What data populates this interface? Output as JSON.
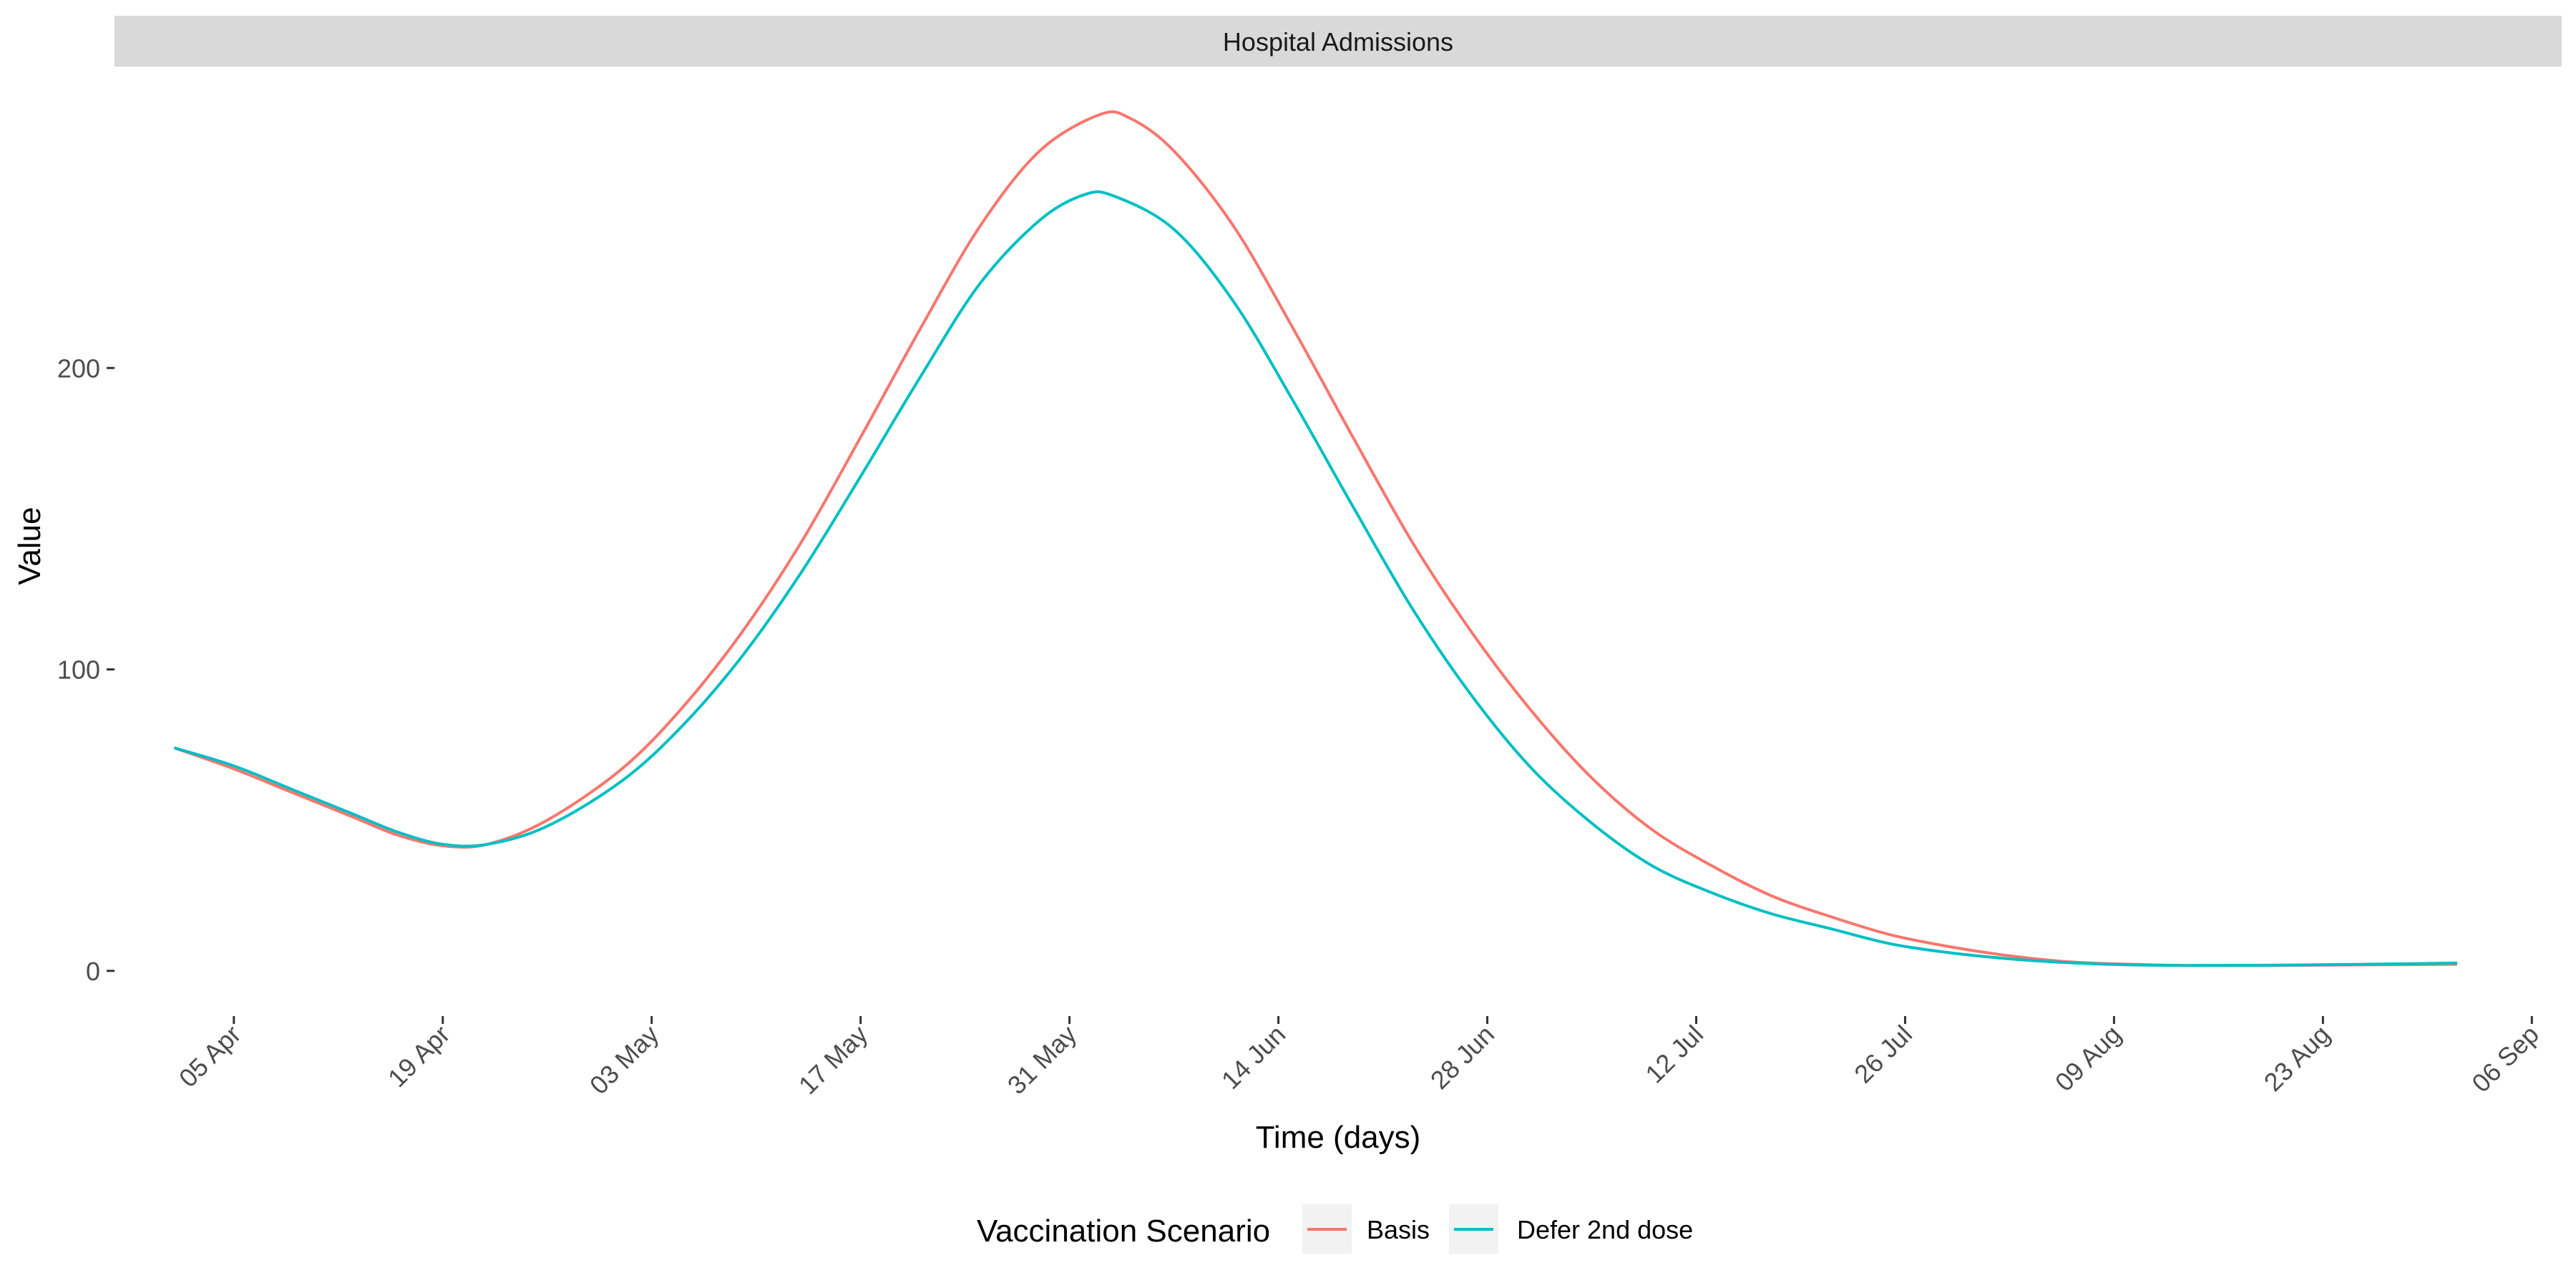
{
  "chart_data": {
    "type": "line",
    "panel_title": "Hospital Admissions",
    "xlabel": "Time (days)",
    "ylabel": "Value",
    "x_type": "date",
    "xlim": [
      "2021-03-28",
      "2021-09-08"
    ],
    "ylim": [
      -15,
      300
    ],
    "x_ticks": [
      {
        "date": "2021-04-05",
        "label": "05 Apr"
      },
      {
        "date": "2021-04-19",
        "label": "19 Apr"
      },
      {
        "date": "2021-05-03",
        "label": "03 May"
      },
      {
        "date": "2021-05-17",
        "label": "17 May"
      },
      {
        "date": "2021-05-31",
        "label": "31 May"
      },
      {
        "date": "2021-06-14",
        "label": "14 Jun"
      },
      {
        "date": "2021-06-28",
        "label": "28 Jun"
      },
      {
        "date": "2021-07-12",
        "label": "12 Jul"
      },
      {
        "date": "2021-07-26",
        "label": "26 Jul"
      },
      {
        "date": "2021-08-09",
        "label": "09 Aug"
      },
      {
        "date": "2021-08-23",
        "label": "23 Aug"
      },
      {
        "date": "2021-09-06",
        "label": "06 Sep"
      }
    ],
    "y_ticks": [
      {
        "value": 0,
        "label": "0"
      },
      {
        "value": 100,
        "label": "100"
      },
      {
        "value": 200,
        "label": "200"
      }
    ],
    "grid": false,
    "legend": {
      "title": "Vaccination Scenario",
      "position": "bottom"
    },
    "series": [
      {
        "name": "Basis",
        "color": "#F8766D",
        "points": [
          [
            "2021-04-01",
            74
          ],
          [
            "2021-04-05",
            67
          ],
          [
            "2021-04-09",
            59
          ],
          [
            "2021-04-13",
            51
          ],
          [
            "2021-04-16",
            45
          ],
          [
            "2021-04-19",
            41.5
          ],
          [
            "2021-04-22",
            42
          ],
          [
            "2021-04-26",
            50
          ],
          [
            "2021-05-01",
            67
          ],
          [
            "2021-05-05",
            87
          ],
          [
            "2021-05-09",
            112
          ],
          [
            "2021-05-13",
            142
          ],
          [
            "2021-05-17",
            177
          ],
          [
            "2021-05-21",
            213
          ],
          [
            "2021-05-25",
            247
          ],
          [
            "2021-05-29",
            272
          ],
          [
            "2021-06-02",
            284
          ],
          [
            "2021-06-04",
            283
          ],
          [
            "2021-06-07",
            272
          ],
          [
            "2021-06-11",
            247
          ],
          [
            "2021-06-15",
            213
          ],
          [
            "2021-06-19",
            177
          ],
          [
            "2021-06-23",
            142
          ],
          [
            "2021-06-27",
            112
          ],
          [
            "2021-07-01",
            86
          ],
          [
            "2021-07-05",
            64
          ],
          [
            "2021-07-09",
            47
          ],
          [
            "2021-07-13",
            35
          ],
          [
            "2021-07-17",
            25
          ],
          [
            "2021-07-21",
            18
          ],
          [
            "2021-07-25",
            12
          ],
          [
            "2021-07-29",
            8
          ],
          [
            "2021-08-02",
            5
          ],
          [
            "2021-08-06",
            3
          ],
          [
            "2021-08-10",
            2.2
          ],
          [
            "2021-08-14",
            1.8
          ],
          [
            "2021-08-20",
            1.8
          ],
          [
            "2021-08-26",
            2
          ],
          [
            "2021-09-01",
            2.2
          ]
        ]
      },
      {
        "name": "Defer 2nd dose",
        "color": "#00BFC4",
        "points": [
          [
            "2021-04-01",
            74
          ],
          [
            "2021-04-05",
            68
          ],
          [
            "2021-04-09",
            60
          ],
          [
            "2021-04-13",
            52
          ],
          [
            "2021-04-16",
            46
          ],
          [
            "2021-04-19",
            42
          ],
          [
            "2021-04-22",
            42
          ],
          [
            "2021-04-26",
            48
          ],
          [
            "2021-05-01",
            63
          ],
          [
            "2021-05-05",
            81
          ],
          [
            "2021-05-09",
            104
          ],
          [
            "2021-05-13",
            132
          ],
          [
            "2021-05-17",
            164
          ],
          [
            "2021-05-21",
            197
          ],
          [
            "2021-05-25",
            228
          ],
          [
            "2021-05-29",
            249
          ],
          [
            "2021-06-01",
            257.5
          ],
          [
            "2021-06-03",
            257
          ],
          [
            "2021-06-07",
            246
          ],
          [
            "2021-06-11",
            222
          ],
          [
            "2021-06-15",
            189
          ],
          [
            "2021-06-19",
            154
          ],
          [
            "2021-06-23",
            120
          ],
          [
            "2021-06-27",
            91
          ],
          [
            "2021-07-01",
            67
          ],
          [
            "2021-07-05",
            49
          ],
          [
            "2021-07-09",
            35
          ],
          [
            "2021-07-13",
            26
          ],
          [
            "2021-07-17",
            19
          ],
          [
            "2021-07-21",
            14
          ],
          [
            "2021-07-25",
            9
          ],
          [
            "2021-07-29",
            6
          ],
          [
            "2021-08-02",
            4
          ],
          [
            "2021-08-06",
            2.7
          ],
          [
            "2021-08-10",
            2
          ],
          [
            "2021-08-14",
            1.8
          ],
          [
            "2021-08-20",
            1.9
          ],
          [
            "2021-08-26",
            2.2
          ],
          [
            "2021-09-01",
            2.6
          ]
        ]
      }
    ]
  }
}
